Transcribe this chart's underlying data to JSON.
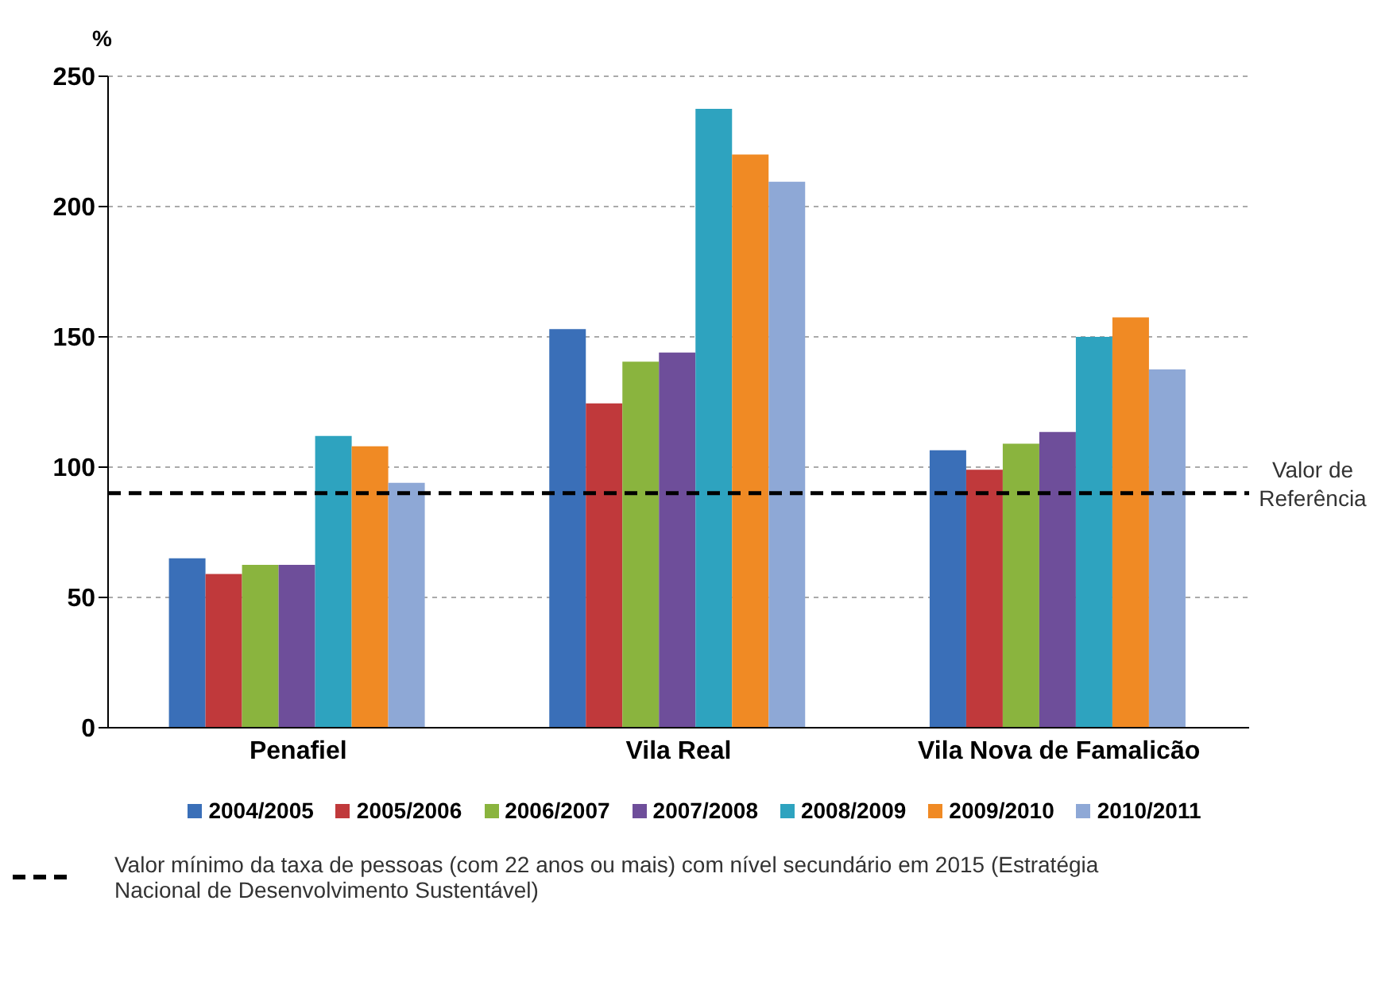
{
  "chart_data": {
    "type": "bar",
    "ylabel": "%",
    "categories": [
      "Penafiel",
      "Vila Real",
      "Vila Nova de Famalicão"
    ],
    "series": [
      {
        "name": "2004/2005",
        "color": "#3a6fb8",
        "values": [
          65,
          153,
          106.5
        ]
      },
      {
        "name": "2005/2006",
        "color": "#c0393b",
        "values": [
          59,
          124.5,
          99
        ]
      },
      {
        "name": "2006/2007",
        "color": "#8ab43e",
        "values": [
          62.5,
          140.5,
          109
        ]
      },
      {
        "name": "2007/2008",
        "color": "#6e4e9a",
        "values": [
          62.5,
          144,
          113.5
        ]
      },
      {
        "name": "2008/2009",
        "color": "#2ea3bf",
        "values": [
          112,
          237.5,
          150
        ]
      },
      {
        "name": "2009/2010",
        "color": "#f08a24",
        "values": [
          108,
          220,
          157.5
        ]
      },
      {
        "name": "2010/2011",
        "color": "#8ea8d6",
        "values": [
          94,
          209.5,
          137.5
        ]
      }
    ],
    "ylim": [
      0,
      250
    ],
    "yticks": [
      0,
      50,
      100,
      150,
      200,
      250
    ],
    "grid": "y",
    "legend": "bottom",
    "ref_lines": [
      {
        "axis": "y",
        "value": 90,
        "label": "Valor de Referência",
        "color": "#000000",
        "line_style": "dashed"
      }
    ],
    "annotations": [
      "Valor mínimo da taxa de pessoas (com 22 anos ou mais) com nível secundário em 2015 (Estratégia Nacional de Desenvolvimento Sustentável)"
    ]
  }
}
